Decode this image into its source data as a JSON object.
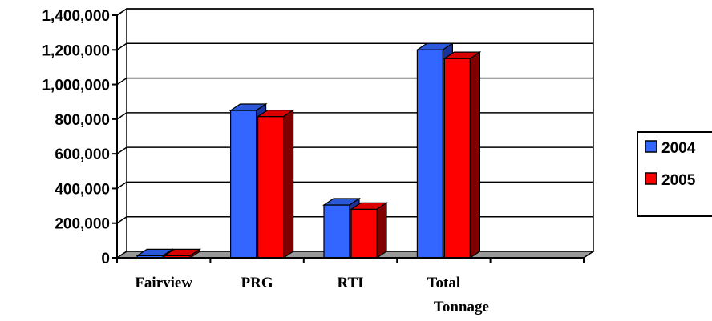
{
  "chart_data": {
    "type": "bar",
    "categories": [
      [
        "Fairview"
      ],
      [
        "PRG"
      ],
      [
        "RTI"
      ],
      [
        "Total",
        "Tonnage"
      ],
      [
        ""
      ]
    ],
    "series": [
      {
        "name": "2004",
        "values": [
          12000,
          850000,
          305000,
          1200000,
          0
        ],
        "color": "#3366ff",
        "dark": "#1a3399"
      },
      {
        "name": "2005",
        "values": [
          12000,
          815000,
          280000,
          1150000,
          0
        ],
        "color": "#ff0000",
        "dark": "#800000"
      }
    ],
    "yticks": [
      "0",
      "200,000",
      "400,000",
      "600,000",
      "800,000",
      "1,000,000",
      "1,200,000",
      "1,400,000"
    ],
    "ylim": [
      0,
      1400000
    ],
    "grid": true,
    "style": "3d-clustered",
    "legend": {
      "position": "right"
    }
  }
}
